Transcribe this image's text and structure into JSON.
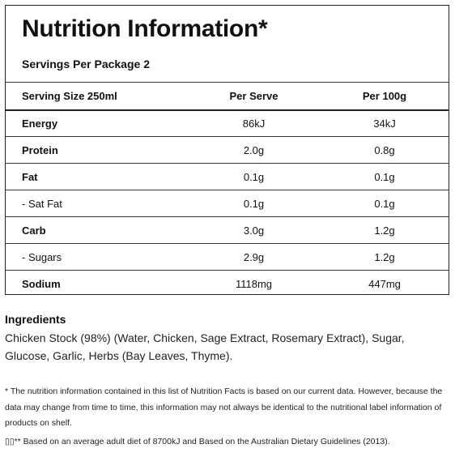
{
  "panel": {
    "title": "Nutrition Information*",
    "servings": "Servings Per Package 2",
    "headers": [
      "Serving Size 250ml",
      "Per Serve",
      "Per 100g"
    ],
    "rows": [
      {
        "name": "Energy",
        "per_serve": "86kJ",
        "per_100g": "34kJ"
      },
      {
        "name": "Protein",
        "per_serve": "2.0g",
        "per_100g": "0.8g"
      },
      {
        "name": "Fat",
        "per_serve": "0.1g",
        "per_100g": "0.1g"
      },
      {
        "name": "- Sat Fat",
        "per_serve": "0.1g",
        "per_100g": "0.1g"
      },
      {
        "name": "Carb",
        "per_serve": "3.0g",
        "per_100g": "1.2g"
      },
      {
        "name": "- Sugars",
        "per_serve": "2.9g",
        "per_100g": "1.2g"
      },
      {
        "name": "Sodium",
        "per_serve": "1118mg",
        "per_100g": "447mg"
      }
    ]
  },
  "ingredients": {
    "heading": "Ingredients",
    "text": "Chicken Stock (98%) (Water, Chicken, Sage Extract, Rosemary Extract), Sugar, Glucose, Garlic, Herbs (Bay Leaves, Thyme)."
  },
  "footnotes": {
    "note1": "* The nutrition information contained in this list of Nutrition Facts is based on our current data. However, because the data may change from time to time, this information may not always be identical to the nutritional label information of products on shelf.",
    "note2": "▯▯** Based on an average adult diet of 8700kJ and Based on the Australian Dietary Guidelines (2013)."
  }
}
